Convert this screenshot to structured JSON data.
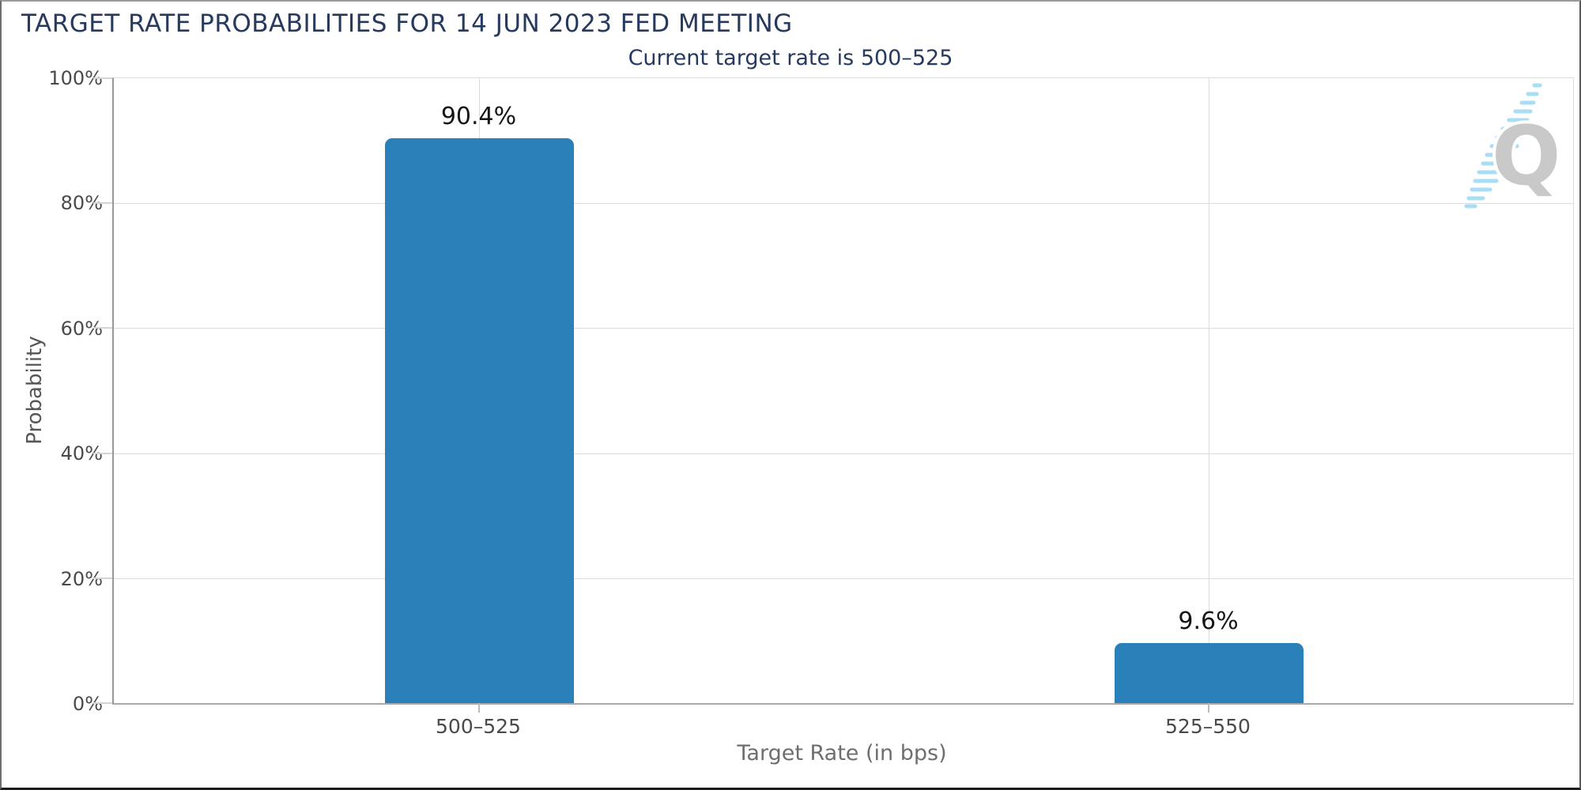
{
  "title": "TARGET RATE PROBABILITIES FOR 14 JUN 2023 FED MEETING",
  "subtitle": "Current target rate is 500–525",
  "logo": {
    "letter": "Q"
  },
  "colors": {
    "bar": "#2a80b9",
    "heading_navy": "#253a5e",
    "gridline": "#dddddd",
    "axis_line": "#999999",
    "tick_label_gray": "#4a4a4a",
    "axis_title_gray": "#6e6e6e",
    "value_label": "#161616",
    "logo_gray": "#c9c9c9",
    "logo_blue": "#a8ddf5"
  },
  "chart_data": {
    "type": "bar",
    "title": "TARGET RATE PROBABILITIES FOR 14 JUN 2023 FED MEETING",
    "subtitle": "Current target rate is 500–525",
    "categories": [
      "500–525",
      "525–550"
    ],
    "values": [
      90.4,
      9.6
    ],
    "value_labels": [
      "90.4%",
      "9.6%"
    ],
    "xlabel": "Target Rate (in bps)",
    "ylabel": "Probability",
    "ylim": [
      0,
      100
    ],
    "yticks": [
      "0%",
      "20%",
      "40%",
      "60%",
      "80%",
      "100%"
    ],
    "grid": true,
    "legend": "none",
    "bar_color": "#2a80b9"
  }
}
